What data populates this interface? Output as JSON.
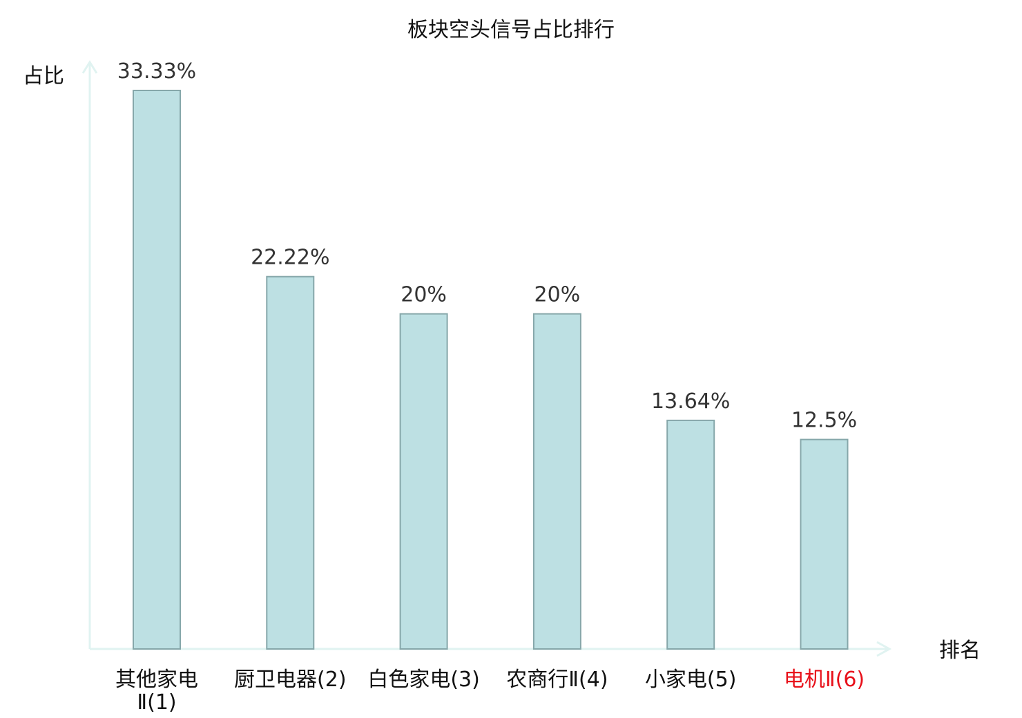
{
  "chart_data": {
    "type": "bar",
    "title": "板块空头信号占比排行",
    "ylabel": "占比",
    "xlabel": "排名",
    "categories": [
      [
        "其他家电",
        "Ⅱ(1)"
      ],
      [
        "厨卫电器(2)"
      ],
      [
        "白色家电(3)"
      ],
      [
        "农商行Ⅱ(4)"
      ],
      [
        "小家电(5)"
      ],
      [
        "电机Ⅱ(6)"
      ]
    ],
    "values": [
      33.33,
      22.22,
      20,
      20,
      13.64,
      12.5
    ],
    "value_labels": [
      "33.33%",
      "22.22%",
      "20%",
      "20%",
      "13.64%",
      "12.5%"
    ],
    "highlight_index": 5,
    "ylim": [
      0,
      33.33
    ],
    "grid": false,
    "colors": {
      "bar_fill": "#bde0e3",
      "bar_stroke": "#86a7aa",
      "axis": "#e0f3f1",
      "category_text": "#111111",
      "highlight_text": "#e8101a"
    }
  }
}
